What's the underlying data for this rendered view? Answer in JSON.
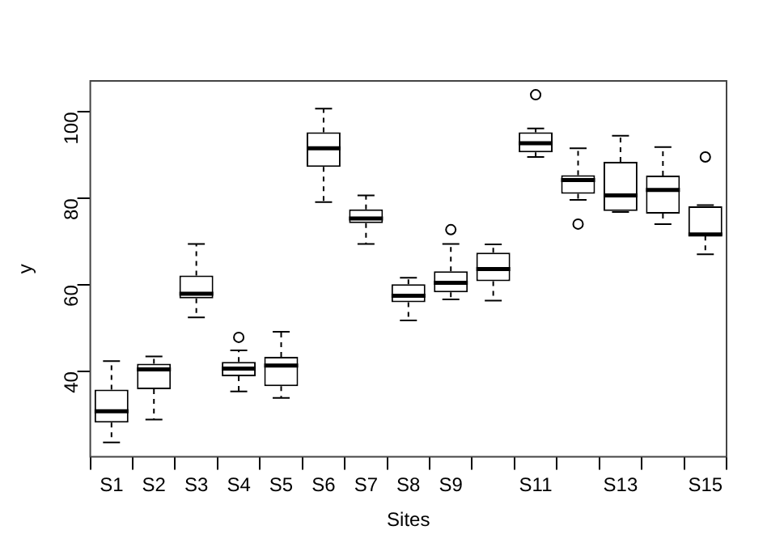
{
  "chart_data": {
    "type": "box",
    "xlabel": "Sites",
    "ylabel": "y",
    "categories": [
      "S1",
      "S2",
      "S3",
      "S4",
      "S5",
      "S6",
      "S7",
      "S8",
      "S9",
      null,
      "S11",
      null,
      "S13",
      null,
      "S15"
    ],
    "ylim": [
      20.3,
      107.2
    ],
    "yticks": [
      40,
      60,
      80,
      100
    ],
    "grid": false,
    "legend": false,
    "boxes": [
      {
        "low": 23.6,
        "q1": 28.2,
        "median": 30.8,
        "q3": 35.8,
        "high": 42.4
      },
      {
        "low": 28.9,
        "q1": 35.9,
        "median": 40.5,
        "q3": 41.8,
        "high": 43.5
      },
      {
        "low": 52.5,
        "q1": 56.9,
        "median": 58.0,
        "q3": 62.2,
        "high": 69.5
      },
      {
        "low": 35.4,
        "q1": 38.9,
        "median": 40.7,
        "q3": 42.2,
        "high": 44.9,
        "outliers": [
          47.9
        ]
      },
      {
        "low": 33.9,
        "q1": 36.6,
        "median": 41.4,
        "q3": 43.4,
        "high": 49.2
      },
      {
        "low": 79.2,
        "q1": 87.3,
        "median": 91.6,
        "q3": 95.3,
        "high": 100.8
      },
      {
        "low": 69.5,
        "q1": 74.3,
        "median": 75.4,
        "q3": 77.5,
        "high": 80.7
      },
      {
        "low": 51.8,
        "q1": 56.0,
        "median": 57.5,
        "q3": 60.2,
        "high": 61.7
      },
      {
        "low": 56.7,
        "q1": 58.3,
        "median": 60.5,
        "q3": 63.2,
        "high": 69.5,
        "outliers": [
          72.8
        ]
      },
      {
        "low": 56.4,
        "q1": 60.9,
        "median": 63.7,
        "q3": 67.5,
        "high": 69.4
      },
      {
        "low": 89.6,
        "q1": 90.7,
        "median": 92.8,
        "q3": 95.3,
        "high": 96.2,
        "outliers": [
          104.0
        ]
      },
      {
        "low": 79.7,
        "q1": 81.1,
        "median": 84.3,
        "q3": 85.4,
        "high": 91.6,
        "outliers": [
          74.1
        ]
      },
      {
        "low": 76.9,
        "q1": 77.1,
        "median": 80.7,
        "q3": 88.5,
        "high": 94.5
      },
      {
        "low": 74.1,
        "q1": 76.5,
        "median": 82.0,
        "q3": 85.3,
        "high": 91.9
      },
      {
        "low": 67.1,
        "q1": 71.4,
        "median": 71.7,
        "q3": 78.2,
        "high": 78.5,
        "outliers": [
          89.6
        ]
      }
    ]
  }
}
